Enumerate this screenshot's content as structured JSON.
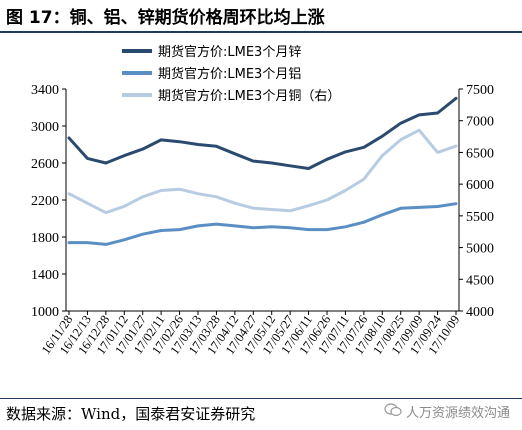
{
  "title": "图 17：铜、铝、锌期货价格周环比均上涨",
  "source": "数据来源：Wind，国泰君安证券研究",
  "watermark": "人万资源绩效沟通",
  "colors": {
    "zinc": "#2b4a6f",
    "aluminum": "#5b8ec3",
    "copper": "#b7cce3",
    "frame": "#1f3a5a"
  },
  "chart_data": {
    "type": "line",
    "x": [
      "16/11/28",
      "16/12/13",
      "16/12/28",
      "17/01/12",
      "17/01/27",
      "17/02/11",
      "17/02/26",
      "17/03/13",
      "17/03/28",
      "17/04/12",
      "17/04/27",
      "17/05/12",
      "17/05/27",
      "17/06/11",
      "17/06/26",
      "17/07/11",
      "17/07/26",
      "17/08/10",
      "17/08/25",
      "17/09/09",
      "17/09/24",
      "17/10/09"
    ],
    "yleft": {
      "min": 1000,
      "max": 3400,
      "ticks": [
        1000,
        1400,
        1800,
        2200,
        2600,
        3000,
        3400
      ]
    },
    "yright": {
      "min": 4000,
      "max": 7500,
      "ticks": [
        4000,
        4500,
        5000,
        5500,
        6000,
        6500,
        7000,
        7500
      ]
    },
    "series": [
      {
        "name": "期货官方价:LME3个月锌",
        "axis": "left",
        "color": "#2b4a6f",
        "values": [
          2870,
          2650,
          2600,
          2680,
          2750,
          2850,
          2830,
          2800,
          2780,
          2700,
          2620,
          2600,
          2570,
          2540,
          2640,
          2720,
          2770,
          2890,
          3030,
          3120,
          3140,
          3300
        ]
      },
      {
        "name": "期货官方价:LME3个月铝",
        "axis": "left",
        "color": "#5b8ec3",
        "values": [
          1740,
          1740,
          1720,
          1770,
          1830,
          1870,
          1880,
          1920,
          1940,
          1920,
          1900,
          1910,
          1900,
          1880,
          1880,
          1910,
          1960,
          2040,
          2110,
          2120,
          2130,
          2160
        ]
      },
      {
        "name": "期货官方价:LME3个月铜（右）",
        "axis": "right",
        "color": "#b7cce3",
        "values": [
          5850,
          5700,
          5550,
          5650,
          5800,
          5900,
          5920,
          5850,
          5800,
          5700,
          5620,
          5600,
          5580,
          5660,
          5750,
          5900,
          6080,
          6450,
          6700,
          6850,
          6500,
          6600
        ]
      }
    ],
    "legend": "top"
  }
}
